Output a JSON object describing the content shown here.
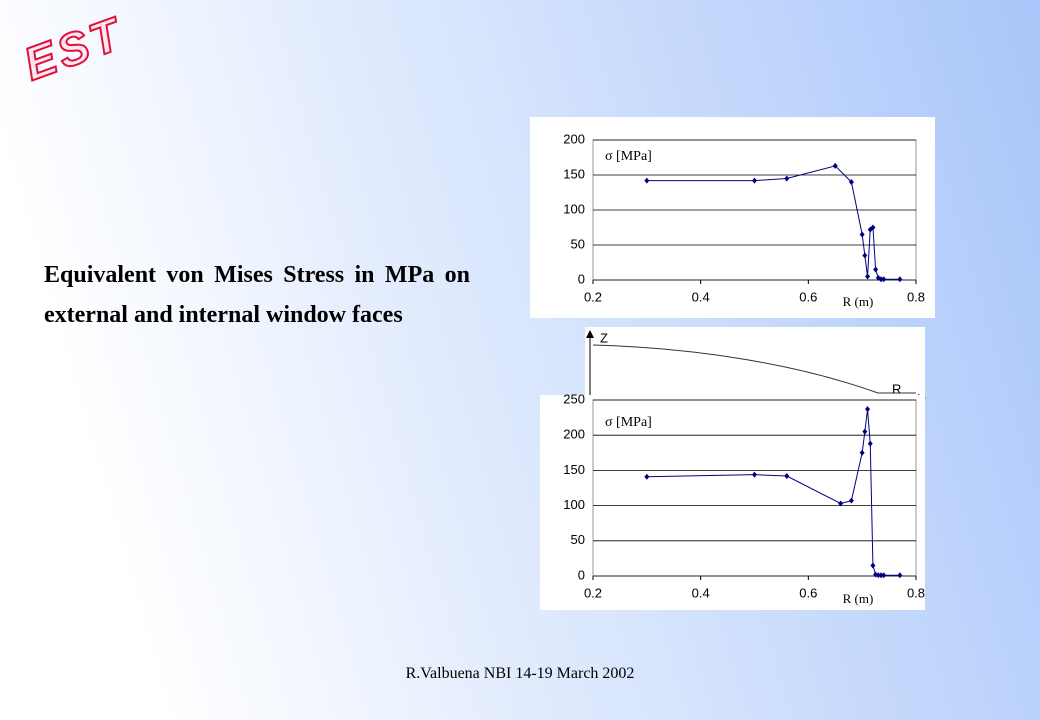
{
  "logo": "EST",
  "body_text": "Equivalent von Mises Stress in MPa on external and internal window faces",
  "footer": "R.Valbuena NBI 14-19 March 2002",
  "profile": {
    "z_label": "Z",
    "r_label": "R"
  },
  "chart_data": [
    {
      "type": "line",
      "ylabel": "σ [MPa]",
      "xlabel": "R (m)",
      "color": "#000080",
      "x": [
        0.3,
        0.5,
        0.56,
        0.65,
        0.68,
        0.7,
        0.705,
        0.71,
        0.715,
        0.72,
        0.725,
        0.73,
        0.735,
        0.74,
        0.77
      ],
      "values": [
        142,
        142,
        145,
        163,
        140,
        65,
        35,
        5,
        72,
        75,
        15,
        3,
        1,
        1,
        1
      ],
      "xlim": [
        0.2,
        0.8
      ],
      "xticks": [
        0.2,
        0.4,
        0.6,
        0.8
      ],
      "ylim": [
        0,
        200
      ],
      "yticks": [
        0,
        50,
        100,
        150,
        200
      ],
      "grid": true
    },
    {
      "type": "line",
      "ylabel": "σ [MPa]",
      "xlabel": "R (m)",
      "color": "#000080",
      "x": [
        0.3,
        0.5,
        0.56,
        0.66,
        0.68,
        0.7,
        0.705,
        0.71,
        0.715,
        0.72,
        0.725,
        0.73,
        0.735,
        0.74,
        0.77
      ],
      "values": [
        141,
        144,
        142,
        103,
        107,
        175,
        205,
        237,
        188,
        15,
        2,
        1,
        1,
        1,
        1
      ],
      "xlim": [
        0.2,
        0.8
      ],
      "xticks": [
        0.2,
        0.4,
        0.6,
        0.8
      ],
      "ylim": [
        0,
        250
      ],
      "yticks": [
        0,
        50,
        100,
        150,
        200,
        250
      ],
      "grid": true
    }
  ]
}
